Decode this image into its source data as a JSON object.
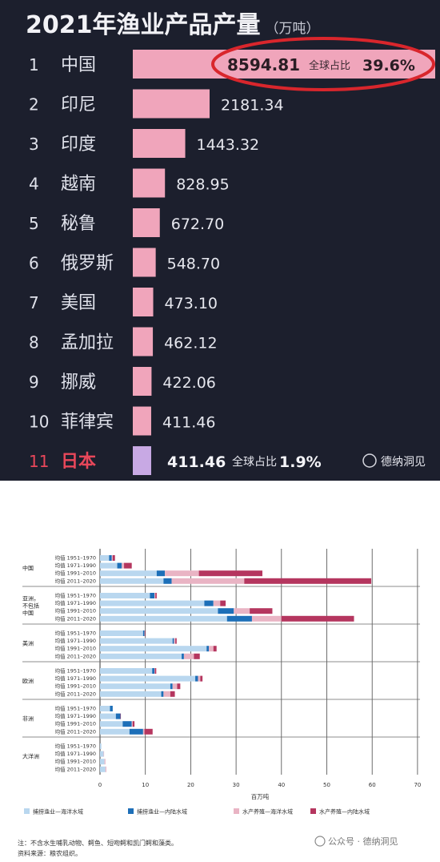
{
  "chart_data": [
    {
      "type": "bar",
      "title": "2021年渔业产品产量",
      "unit": "（万吨）",
      "ranks": [
        "1",
        "2",
        "3",
        "4",
        "5",
        "6",
        "7",
        "8",
        "9",
        "10",
        "11"
      ],
      "categories": [
        "中国",
        "印尼",
        "印度",
        "越南",
        "秘鲁",
        "俄罗斯",
        "美国",
        "孟加拉",
        "挪威",
        "菲律宾",
        "日本"
      ],
      "values": [
        8594.81,
        2181.34,
        1443.32,
        828.95,
        672.7,
        548.7,
        473.1,
        462.12,
        422.06,
        411.46,
        411.46
      ],
      "value_labels": [
        "8594.81",
        "2181.34",
        "1443.32",
        "828.95",
        "672.70",
        "548.70",
        "473.10",
        "462.12",
        "422.06",
        "411.46",
        "411.46"
      ],
      "annotations": [
        {
          "index": 0,
          "share_label": "全球占比",
          "share_value": "39.6%",
          "highlight": "red-circle"
        },
        {
          "index": 10,
          "share_label": "全球占比",
          "share_value": "1.9%"
        }
      ],
      "watermark": "德纳洞见",
      "colors": {
        "background": "#1c1f2d",
        "bar": "#f0a5bb",
        "highlight_circle": "#d9262c",
        "text": "#f2f2f6"
      }
    },
    {
      "type": "bar",
      "orientation": "horizontal",
      "stacked": true,
      "xlabel": "百万吨",
      "xlim": [
        0,
        70
      ],
      "xticks": [
        0,
        10,
        20,
        30,
        40,
        50,
        60,
        70
      ],
      "groups": [
        {
          "name": "中国",
          "rows": [
            "均值 1951–1970",
            "均值 1971–1990",
            "均值 1991–2010",
            "均值 2011–2020"
          ]
        },
        {
          "name": "亚洲，\n不包括\n中国",
          "rows": [
            "均值 1951–1970",
            "均值 1971–1990",
            "均值 1991–2010",
            "均值 2011–2020"
          ]
        },
        {
          "name": "美洲",
          "rows": [
            "均值 1951–1970",
            "均值 1971–1990",
            "均值 1991–2010",
            "均值 2011–2020"
          ]
        },
        {
          "name": "欧洲",
          "rows": [
            "均值 1951–1970",
            "均值 1971–1990",
            "均值 1991–2010",
            "均值 2011–2020"
          ]
        },
        {
          "name": "非洲",
          "rows": [
            "均值 1951–1970",
            "均值 1971–1990",
            "均值 1991–2010",
            "均值 2011–2020"
          ]
        },
        {
          "name": "大洋洲",
          "rows": [
            "均值 1951–1970",
            "均值 1971–1990",
            "均值 1991–2010",
            "均值 2011–2020"
          ]
        }
      ],
      "series": [
        {
          "name": "捕捞渔业—海洋水域",
          "color": "#b9d7ef",
          "values": [
            2.0,
            3.8,
            12.5,
            14.0,
            11.0,
            23.0,
            26.0,
            28.0,
            9.5,
            16.0,
            23.5,
            18.0,
            11.5,
            21.0,
            15.5,
            13.5,
            2.2,
            3.5,
            5.0,
            6.5,
            0.3,
            0.8,
            1.0,
            1.2
          ]
        },
        {
          "name": "捕捞渔业—内陆水域",
          "color": "#1d6fb8",
          "values": [
            0.6,
            1.0,
            1.8,
            1.8,
            1.0,
            2.0,
            3.5,
            5.5,
            0.3,
            0.3,
            0.5,
            0.5,
            0.5,
            0.6,
            0.5,
            0.5,
            0.6,
            1.0,
            2.0,
            3.0,
            0.0,
            0.0,
            0.0,
            0.0
          ]
        },
        {
          "name": "水产养殖—海洋水域",
          "color": "#e9b4c4",
          "values": [
            0.2,
            0.5,
            7.5,
            16.0,
            0.2,
            1.5,
            3.5,
            6.5,
            0.1,
            0.3,
            1.0,
            2.2,
            0.1,
            0.5,
            1.0,
            1.5,
            0.0,
            0.0,
            0.2,
            0.3,
            0.0,
            0.1,
            0.2,
            0.2
          ]
        },
        {
          "name": "水产养殖—内陆水域",
          "color": "#b5365f",
          "values": [
            0.5,
            1.7,
            14.0,
            28.0,
            0.3,
            1.2,
            5.0,
            16.0,
            0.1,
            0.3,
            0.7,
            1.3,
            0.3,
            0.5,
            0.7,
            1.0,
            0.0,
            0.1,
            0.4,
            1.8,
            0.0,
            0.0,
            0.0,
            0.0
          ]
        }
      ],
      "note": "注：不含水生哺乳动物、鳄鱼、短吻鳄和凯门鳄和藻类。",
      "source": "资料来源：粮农组织。",
      "watermark": "公众号 · 德纳洞见"
    }
  ]
}
